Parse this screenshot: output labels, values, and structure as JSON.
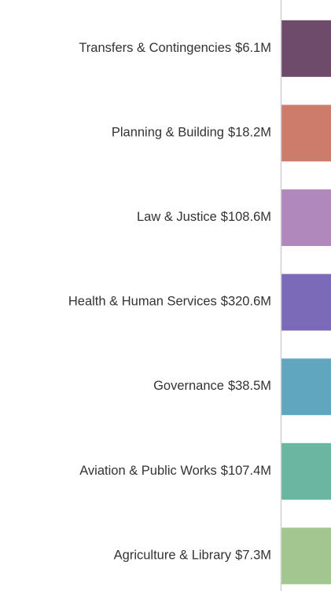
{
  "chart_data": {
    "type": "bar",
    "orientation": "horizontal",
    "categories": [
      "Transfers & Contingencies",
      "Planning & Building",
      "Law & Justice",
      "Health & Human Services",
      "Governance",
      "Aviation & Public Works",
      "Agriculture & Library"
    ],
    "values": [
      6.1,
      18.2,
      108.6,
      320.6,
      38.5,
      107.4,
      7.3
    ],
    "value_labels": [
      "$6.1M",
      "$18.2M",
      "$108.6M",
      "$320.6M",
      "$38.5M",
      "$107.4M",
      "$7.3M"
    ],
    "colors": [
      "#6e4a6b",
      "#cd7b6a",
      "#b088bb",
      "#7b6ab8",
      "#5fa6be",
      "#6bb6a0",
      "#a3c690"
    ],
    "xlim": [
      0,
      6
    ]
  }
}
